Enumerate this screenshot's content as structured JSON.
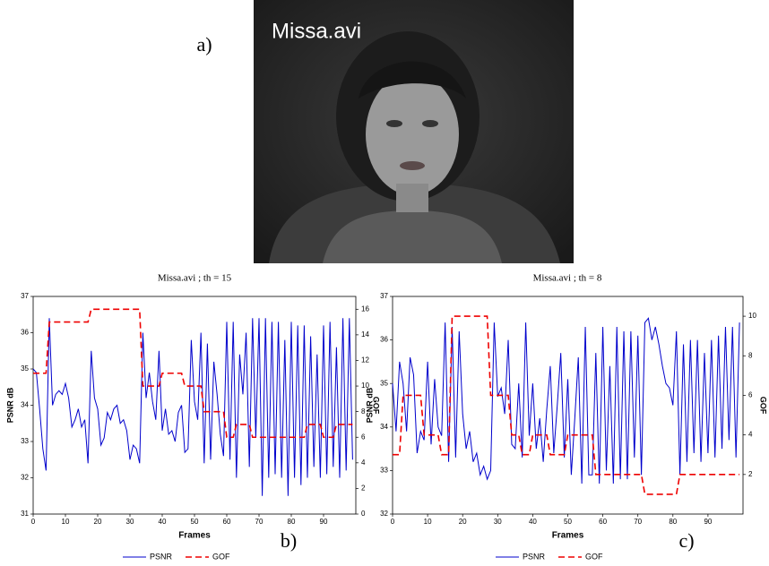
{
  "figure": {
    "labels": [
      "a)",
      "b)",
      "c)"
    ],
    "image_caption": "Missa.avi"
  },
  "chart_data": [
    {
      "type": "line",
      "title": "Missa.avi ; th = 15",
      "x_label": "Frames",
      "y_label": "PSNR dB",
      "y2_label": "GOF",
      "x": [
        0,
        1,
        2,
        3,
        4,
        5,
        6,
        7,
        8,
        9,
        10,
        11,
        12,
        13,
        14,
        15,
        16,
        17,
        18,
        19,
        20,
        21,
        22,
        23,
        24,
        25,
        26,
        27,
        28,
        29,
        30,
        31,
        32,
        33,
        34,
        35,
        36,
        37,
        38,
        39,
        40,
        41,
        42,
        43,
        44,
        45,
        46,
        47,
        48,
        49,
        50,
        51,
        52,
        53,
        54,
        55,
        56,
        57,
        58,
        59,
        60,
        61,
        62,
        63,
        64,
        65,
        66,
        67,
        68,
        69,
        70,
        71,
        72,
        73,
        74,
        75,
        76,
        77,
        78,
        79,
        80,
        81,
        82,
        83,
        84,
        85,
        86,
        87,
        88,
        89,
        90,
        91,
        92,
        93,
        94,
        95,
        96,
        97,
        98,
        99
      ],
      "xlim": [
        0,
        100
      ],
      "xticks": [
        0,
        10,
        20,
        30,
        40,
        50,
        60,
        70,
        80,
        90
      ],
      "ylim": [
        31,
        37
      ],
      "yticks": [
        31,
        32,
        33,
        34,
        35,
        36,
        37
      ],
      "y2lim": [
        0,
        17
      ],
      "y2ticks": [
        0,
        2,
        4,
        6,
        8,
        10,
        12,
        14,
        16
      ],
      "series": [
        {
          "name": "PSNR",
          "color": "#0000cc",
          "dash": false,
          "values": [
            35.0,
            34.9,
            33.9,
            32.8,
            32.2,
            36.4,
            34.0,
            34.3,
            34.4,
            34.3,
            34.6,
            34.2,
            33.4,
            33.6,
            33.9,
            33.4,
            33.6,
            32.4,
            35.5,
            34.2,
            33.9,
            32.9,
            33.1,
            33.8,
            33.6,
            33.9,
            34.0,
            33.5,
            33.6,
            33.3,
            32.5,
            32.9,
            32.8,
            32.4,
            36.0,
            34.2,
            34.9,
            34.1,
            33.6,
            35.5,
            33.3,
            33.9,
            33.2,
            33.3,
            33.0,
            33.8,
            34.0,
            32.7,
            32.8,
            35.8,
            34.1,
            33.6,
            36.0,
            32.4,
            35.7,
            32.5,
            35.2,
            34.3,
            33.2,
            32.6,
            36.3,
            32.5,
            36.3,
            32.0,
            35.4,
            34.3,
            36.0,
            32.3,
            36.4,
            33.1,
            36.4,
            31.5,
            36.4,
            32.0,
            36.3,
            32.1,
            36.3,
            32.0,
            35.8,
            31.5,
            36.3,
            32.0,
            36.2,
            31.8,
            36.2,
            32.0,
            35.9,
            32.3,
            35.4,
            32.0,
            36.2,
            32.1,
            36.3,
            32.3,
            35.6,
            32.0,
            36.4,
            32.2,
            36.4,
            32.5
          ]
        },
        {
          "name": "GOF",
          "color": "#ee0000",
          "dash": true,
          "axis": "y2",
          "values": [
            11,
            11,
            11,
            11,
            11,
            15,
            15,
            15,
            15,
            15,
            15,
            15,
            15,
            15,
            15,
            15,
            15,
            15,
            16,
            16,
            16,
            16,
            16,
            16,
            16,
            16,
            16,
            16,
            16,
            16,
            16,
            16,
            16,
            16,
            10,
            10,
            10,
            10,
            10,
            10,
            11,
            11,
            11,
            11,
            11,
            11,
            11,
            10,
            10,
            10,
            10,
            10,
            10,
            8,
            8,
            8,
            8,
            8,
            8,
            8,
            6,
            6,
            6,
            7,
            7,
            7,
            7,
            7,
            6,
            6,
            6,
            6,
            6,
            6,
            6,
            6,
            6,
            6,
            6,
            6,
            6,
            6,
            6,
            6,
            6,
            7,
            7,
            7,
            7,
            7,
            6,
            6,
            6,
            6,
            7,
            7,
            7,
            7,
            7,
            7
          ]
        }
      ]
    },
    {
      "type": "line",
      "title": "Missa.avi ; th = 8",
      "x_label": "Frames",
      "y_label": "PSNR dB",
      "y2_label": "GOF",
      "x": [
        0,
        1,
        2,
        3,
        4,
        5,
        6,
        7,
        8,
        9,
        10,
        11,
        12,
        13,
        14,
        15,
        16,
        17,
        18,
        19,
        20,
        21,
        22,
        23,
        24,
        25,
        26,
        27,
        28,
        29,
        30,
        31,
        32,
        33,
        34,
        35,
        36,
        37,
        38,
        39,
        40,
        41,
        42,
        43,
        44,
        45,
        46,
        47,
        48,
        49,
        50,
        51,
        52,
        53,
        54,
        55,
        56,
        57,
        58,
        59,
        60,
        61,
        62,
        63,
        64,
        65,
        66,
        67,
        68,
        69,
        70,
        71,
        72,
        73,
        74,
        75,
        76,
        77,
        78,
        79,
        80,
        81,
        82,
        83,
        84,
        85,
        86,
        87,
        88,
        89,
        90,
        91,
        92,
        93,
        94,
        95,
        96,
        97,
        98,
        99
      ],
      "xlim": [
        0,
        100
      ],
      "xticks": [
        0,
        10,
        20,
        30,
        40,
        50,
        60,
        70,
        80,
        90
      ],
      "ylim": [
        32,
        37
      ],
      "yticks": [
        32,
        33,
        34,
        35,
        36,
        37
      ],
      "y2lim": [
        0,
        11
      ],
      "y2ticks": [
        2,
        4,
        6,
        8,
        10
      ],
      "series": [
        {
          "name": "PSNR",
          "color": "#0000cc",
          "dash": false,
          "values": [
            35.0,
            33.9,
            35.5,
            35.0,
            33.9,
            35.6,
            35.2,
            33.4,
            33.9,
            33.7,
            35.5,
            33.6,
            35.1,
            34.0,
            33.8,
            36.4,
            33.2,
            36.3,
            33.3,
            36.2,
            34.3,
            33.5,
            33.9,
            33.2,
            33.4,
            32.9,
            33.1,
            32.8,
            33.0,
            36.4,
            34.7,
            34.9,
            34.3,
            36.0,
            33.6,
            33.5,
            35.0,
            33.3,
            36.4,
            33.8,
            35.0,
            33.5,
            34.2,
            33.2,
            34.4,
            35.4,
            33.4,
            34.5,
            35.7,
            33.3,
            35.1,
            32.9,
            34.2,
            35.6,
            32.7,
            36.3,
            32.9,
            32.9,
            35.7,
            32.7,
            36.3,
            33.0,
            35.4,
            32.7,
            36.3,
            32.8,
            36.2,
            32.8,
            36.2,
            33.3,
            36.1,
            32.9,
            36.4,
            36.5,
            36.0,
            36.3,
            35.9,
            35.4,
            35.0,
            34.9,
            34.5,
            36.2,
            32.9,
            35.9,
            33.2,
            36.0,
            33.4,
            36.0,
            33.2,
            35.7,
            33.4,
            36.0,
            33.3,
            36.1,
            33.5,
            36.3,
            33.7,
            36.3,
            33.3,
            36.4
          ]
        },
        {
          "name": "GOF",
          "color": "#ee0000",
          "dash": true,
          "axis": "y2",
          "values": [
            3,
            3,
            3,
            6,
            6,
            6,
            6,
            6,
            6,
            4,
            4,
            4,
            4,
            4,
            3,
            3,
            3,
            10,
            10,
            10,
            10,
            10,
            10,
            10,
            10,
            10,
            10,
            10,
            6,
            6,
            6,
            6,
            6,
            6,
            4,
            4,
            4,
            3,
            3,
            3,
            4,
            4,
            4,
            4,
            4,
            3,
            3,
            3,
            3,
            3,
            4,
            4,
            4,
            4,
            4,
            4,
            4,
            4,
            2,
            2,
            2,
            2,
            2,
            2,
            2,
            2,
            2,
            2,
            2,
            2,
            2,
            2,
            1,
            1,
            1,
            1,
            1,
            1,
            1,
            1,
            1,
            1,
            2,
            2,
            2,
            2,
            2,
            2,
            2,
            2,
            2,
            2,
            2,
            2,
            2,
            2,
            2,
            2,
            2,
            2
          ]
        }
      ]
    }
  ]
}
